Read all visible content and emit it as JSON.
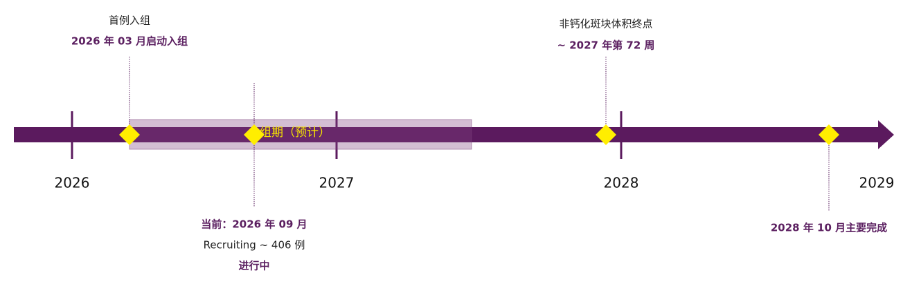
{
  "timeline": {
    "years": [
      "2026",
      "2027",
      "2028",
      "2029"
    ],
    "band_label": "入组期（预计）",
    "milestones": [
      {
        "title": "首例入组",
        "detail": "2026 年 03 月启动入组"
      },
      {
        "title": "当前：2026 年 09 月",
        "detail": "Recruiting ~ 406 例",
        "status": "进行中"
      },
      {
        "title": "非钙化斑块体积终点",
        "detail": "~ 2027 年第 72 周"
      },
      {
        "title": "2028 年 10 月主要完成"
      }
    ]
  }
}
